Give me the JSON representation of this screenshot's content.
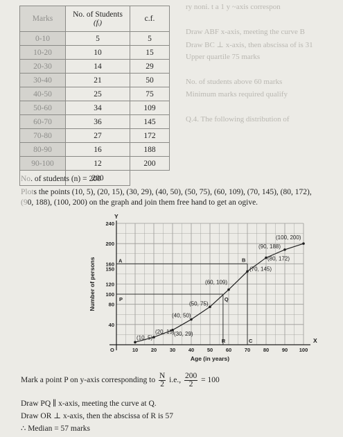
{
  "table": {
    "headers": {
      "marks": "Marks",
      "students": "No. of Students",
      "fi": "(fᵢ)",
      "cf": "c.f."
    },
    "rows": [
      {
        "marks": "0-10",
        "f": "5",
        "cf": "5"
      },
      {
        "marks": "10-20",
        "f": "10",
        "cf": "15"
      },
      {
        "marks": "20-30",
        "f": "14",
        "cf": "29"
      },
      {
        "marks": "30-40",
        "f": "21",
        "cf": "50"
      },
      {
        "marks": "40-50",
        "f": "25",
        "cf": "75"
      },
      {
        "marks": "50-60",
        "f": "34",
        "cf": "109"
      },
      {
        "marks": "60-70",
        "f": "36",
        "cf": "145"
      },
      {
        "marks": "70-80",
        "f": "27",
        "cf": "172"
      },
      {
        "marks": "80-90",
        "f": "16",
        "cf": "188"
      },
      {
        "marks": "90-100",
        "f": "12",
        "cf": "200"
      }
    ],
    "total": "200"
  },
  "text": {
    "n_line_prefix": "No",
    "n_line": ". of students (n) = 200",
    "plot_prefix": "Plot",
    "plot_line1": "s the points (10, 5), (20, 15), (30, 29), (40, 50), (50, 75), (60, 109), (70, 145), (80, 172),",
    "plot_line2_prefix": "(9",
    "plot_line2": "0, 188), (100, 200) on the graph and join them free hand to get an ogive.",
    "mark_a": "Mark a point P on y-axis corresponding to",
    "frac1_num": "N",
    "frac1_den": "2",
    "ie": "i.e.,",
    "frac2_num": "200",
    "frac2_den": "2",
    "eq": "= 100",
    "draw_pq": "Draw PQ ∥ x-axis, meeting the curve at Q.",
    "draw_or": "Draw OR ⊥ x-axis, then the abscissa of R is 57",
    "median": "∴  Median = 57 marks"
  },
  "chart_data": {
    "type": "line",
    "title": "",
    "xlabel": "Age (in years)",
    "ylabel": "Number of persons",
    "x_axis_letter": "X",
    "y_axis_letter": "Y",
    "xlim": [
      0,
      100
    ],
    "ylim": [
      0,
      240
    ],
    "xticks": [
      "10",
      "20",
      "30",
      "40",
      "50",
      "60",
      "70",
      "80",
      "90",
      "100"
    ],
    "yticks": [
      "40",
      "80",
      "100",
      "120",
      "150",
      "160",
      "200",
      "240"
    ],
    "points": [
      {
        "x": 10,
        "y": 5,
        "label": "(10, 5)"
      },
      {
        "x": 20,
        "y": 15,
        "label": "(20, 15)"
      },
      {
        "x": 30,
        "y": 29,
        "label": "(30, 29)"
      },
      {
        "x": 40,
        "y": 50,
        "label": "(40, 50)"
      },
      {
        "x": 50,
        "y": 75,
        "label": "(50, 75)"
      },
      {
        "x": 60,
        "y": 109,
        "label": "(60, 109)"
      },
      {
        "x": 70,
        "y": 145,
        "label": "(70, 145)"
      },
      {
        "x": 80,
        "y": 172,
        "label": "(80, 172)"
      },
      {
        "x": 90,
        "y": 188,
        "label": "(90, 188)"
      },
      {
        "x": 100,
        "y": 200,
        "label": "(100, 200)"
      }
    ],
    "annotations": [
      {
        "text": "A",
        "x": 0,
        "y": 160
      },
      {
        "text": "B",
        "x": 70,
        "y": 160
      },
      {
        "text": "P",
        "x": 0,
        "y": 100
      },
      {
        "text": "Q",
        "x": 57,
        "y": 100
      },
      {
        "text": "R",
        "x": 57,
        "y": 0
      },
      {
        "text": "C",
        "x": 70,
        "y": 0
      },
      {
        "text": "O",
        "x": 0,
        "y": 0
      }
    ],
    "grid": true,
    "colors": {
      "curve": "#1f1f1f",
      "grid": "#9a9a96"
    }
  }
}
